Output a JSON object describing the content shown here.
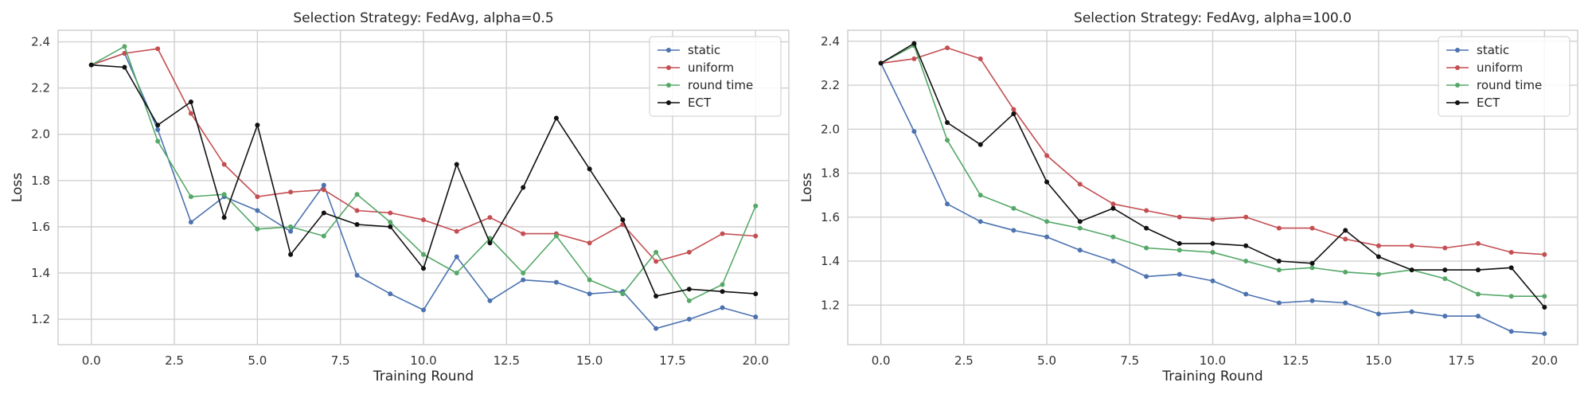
{
  "chart_data": [
    {
      "type": "line",
      "title": "Selection Strategy: FedAvg, alpha=0.5",
      "xlabel": "Training Round",
      "ylabel": "Loss",
      "xlim": [
        -1,
        21
      ],
      "ylim": [
        1.09,
        2.45
      ],
      "xticks": [
        0,
        2.5,
        5,
        7.5,
        10,
        12.5,
        15,
        17.5,
        20
      ],
      "xtick_labels": [
        "0.0",
        "2.5",
        "5.0",
        "7.5",
        "10.0",
        "12.5",
        "15.0",
        "17.5",
        "20.0"
      ],
      "yticks": [
        1.2,
        1.4,
        1.6,
        1.8,
        2.0,
        2.2,
        2.4
      ],
      "ytick_labels": [
        "1.2",
        "1.4",
        "1.6",
        "1.8",
        "2.0",
        "2.2",
        "2.4"
      ],
      "grid": true,
      "legend_position": "top-right",
      "x": [
        0,
        1,
        2,
        3,
        4,
        5,
        6,
        7,
        8,
        9,
        10,
        11,
        12,
        13,
        14,
        15,
        16,
        17,
        18,
        19,
        20
      ],
      "series": [
        {
          "name": "static",
          "color": "#4c72b0",
          "values": [
            2.3,
            2.35,
            2.02,
            1.62,
            1.73,
            1.67,
            1.58,
            1.78,
            1.39,
            1.31,
            1.24,
            1.47,
            1.28,
            1.37,
            1.36,
            1.31,
            1.32,
            1.16,
            1.2,
            1.25,
            1.21
          ]
        },
        {
          "name": "uniform",
          "color": "#c44e52",
          "values": [
            2.3,
            2.35,
            2.37,
            2.09,
            1.87,
            1.73,
            1.75,
            1.76,
            1.67,
            1.66,
            1.63,
            1.58,
            1.64,
            1.57,
            1.57,
            1.53,
            1.61,
            1.45,
            1.49,
            1.57,
            1.56
          ]
        },
        {
          "name": "round time",
          "color": "#55a868",
          "values": [
            2.3,
            2.38,
            1.97,
            1.73,
            1.74,
            1.59,
            1.6,
            1.56,
            1.74,
            1.62,
            1.48,
            1.4,
            1.55,
            1.4,
            1.56,
            1.37,
            1.31,
            1.49,
            1.28,
            1.35,
            1.69
          ]
        },
        {
          "name": "ECT",
          "color": "#111111",
          "values": [
            2.3,
            2.29,
            2.04,
            2.14,
            1.64,
            2.04,
            1.48,
            1.66,
            1.61,
            1.6,
            1.42,
            1.87,
            1.53,
            1.77,
            2.07,
            1.85,
            1.63,
            1.3,
            1.33,
            1.32,
            1.31
          ]
        }
      ]
    },
    {
      "type": "line",
      "title": "Selection Strategy: FedAvg, alpha=100.0",
      "xlabel": "Training Round",
      "ylabel": "Loss",
      "xlim": [
        -1,
        21
      ],
      "ylim": [
        1.02,
        2.45
      ],
      "xticks": [
        0,
        2.5,
        5,
        7.5,
        10,
        12.5,
        15,
        17.5,
        20
      ],
      "xtick_labels": [
        "0.0",
        "2.5",
        "5.0",
        "7.5",
        "10.0",
        "12.5",
        "15.0",
        "17.5",
        "20.0"
      ],
      "yticks": [
        1.2,
        1.4,
        1.6,
        1.8,
        2.0,
        2.2,
        2.4
      ],
      "ytick_labels": [
        "1.2",
        "1.4",
        "1.6",
        "1.8",
        "2.0",
        "2.2",
        "2.4"
      ],
      "grid": true,
      "legend_position": "top-right",
      "x": [
        0,
        1,
        2,
        3,
        4,
        5,
        6,
        7,
        8,
        9,
        10,
        11,
        12,
        13,
        14,
        15,
        16,
        17,
        18,
        19,
        20
      ],
      "series": [
        {
          "name": "static",
          "color": "#4c72b0",
          "values": [
            2.3,
            1.99,
            1.66,
            1.58,
            1.54,
            1.51,
            1.45,
            1.4,
            1.33,
            1.34,
            1.31,
            1.25,
            1.21,
            1.22,
            1.21,
            1.16,
            1.17,
            1.15,
            1.15,
            1.08,
            1.07
          ]
        },
        {
          "name": "uniform",
          "color": "#c44e52",
          "values": [
            2.3,
            2.32,
            2.37,
            2.32,
            2.09,
            1.88,
            1.75,
            1.66,
            1.63,
            1.6,
            1.59,
            1.6,
            1.55,
            1.55,
            1.5,
            1.47,
            1.47,
            1.46,
            1.48,
            1.44,
            1.43
          ]
        },
        {
          "name": "round time",
          "color": "#55a868",
          "values": [
            2.3,
            2.38,
            1.95,
            1.7,
            1.64,
            1.58,
            1.55,
            1.51,
            1.46,
            1.45,
            1.44,
            1.4,
            1.36,
            1.37,
            1.35,
            1.34,
            1.36,
            1.32,
            1.25,
            1.24,
            1.24
          ]
        },
        {
          "name": "ECT",
          "color": "#111111",
          "values": [
            2.3,
            2.39,
            2.03,
            1.93,
            2.07,
            1.76,
            1.58,
            1.64,
            1.55,
            1.48,
            1.48,
            1.47,
            1.4,
            1.39,
            1.54,
            1.42,
            1.36,
            1.36,
            1.36,
            1.37,
            1.19
          ]
        }
      ]
    }
  ]
}
